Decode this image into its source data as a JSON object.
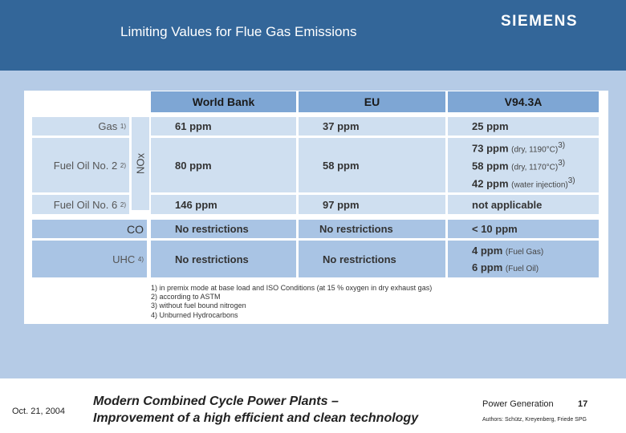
{
  "header": {
    "title": "Limiting Values for Flue Gas Emissions",
    "brand": "SIEMENS"
  },
  "table": {
    "columns": [
      "World Bank",
      "EU",
      "V94.3A"
    ],
    "nox_label": "NOx",
    "rows": {
      "gas": {
        "label": "Gas",
        "sup": "1)",
        "world_bank": "61 ppm",
        "eu": "37 ppm",
        "v94": "25 ppm"
      },
      "fuel_oil_2": {
        "label": "Fuel Oil No. 2",
        "sup": "2)",
        "world_bank": "80 ppm",
        "eu": "58 ppm",
        "v94": [
          {
            "value": "73 ppm",
            "note": "(dry, 1190°C)",
            "sup": "3)"
          },
          {
            "value": "58 ppm",
            "note": "(dry, 1170°C)",
            "sup": "3)"
          },
          {
            "value": "42 ppm",
            "note": "(water injection)",
            "sup": "3)"
          }
        ]
      },
      "fuel_oil_6": {
        "label": "Fuel Oil No. 6",
        "sup": "2)",
        "world_bank": "146 ppm",
        "eu": "97 ppm",
        "v94": "not applicable"
      },
      "co": {
        "label": "CO",
        "world_bank": "No restrictions",
        "eu": "No restrictions",
        "v94": "< 10 ppm"
      },
      "uhc": {
        "label": "UHC",
        "sup": "4)",
        "world_bank": "No restrictions",
        "eu": "No restrictions",
        "v94": [
          {
            "value": "4 ppm",
            "note": "(Fuel Gas)"
          },
          {
            "value": "6 ppm",
            "note": "(Fuel Oil)"
          }
        ]
      }
    },
    "footnotes": [
      "1)  in premix mode at base load and ISO Conditions (at 15 % oxygen in dry exhaust gas)",
      "2)  according to ASTM",
      "3)  without fuel bound nitrogen",
      "4)  Unburned Hydrocarbons"
    ]
  },
  "footer": {
    "date": "Oct. 21, 2004",
    "line1": "Modern Combined Cycle Power Plants –",
    "line2": "Improvement of a high efficient and clean technology",
    "division": "Power Generation",
    "page": "17",
    "authors": "Authors: Schütz, Kreyenberg, Friede SPG"
  }
}
